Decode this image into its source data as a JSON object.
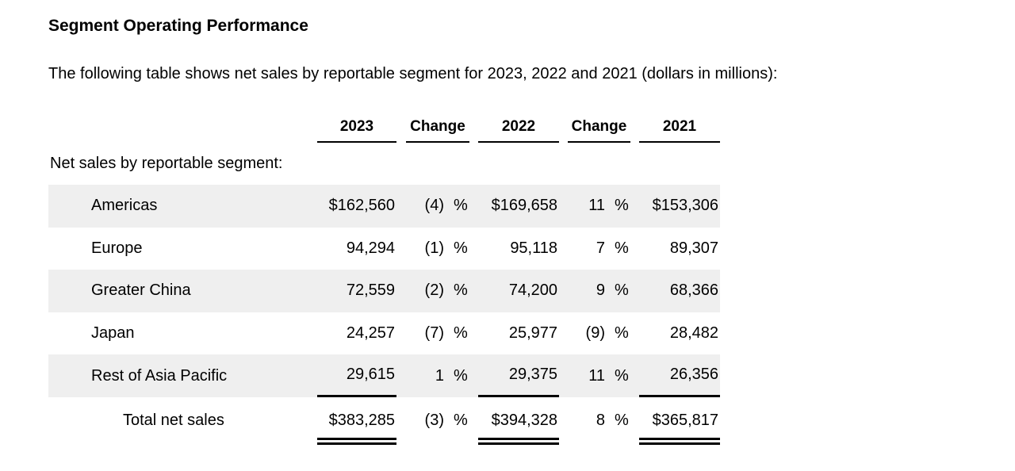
{
  "page": {
    "title": "Segment Operating Performance",
    "intro": "The following table shows net sales by reportable segment for 2023, 2022 and 2021 (dollars in millions):"
  },
  "colors": {
    "stripe": "#efefef",
    "text": "#000000",
    "background": "#ffffff"
  },
  "table": {
    "columns": [
      "2023",
      "Change",
      "2022",
      "Change",
      "2021"
    ],
    "section_label": "Net sales by reportable segment:",
    "percent": "%",
    "rows": [
      {
        "label": "Americas",
        "v2023": "$162,560",
        "c2023": "(4)",
        "v2022": "$169,658",
        "c2022": "11",
        "v2021": "$153,306"
      },
      {
        "label": "Europe",
        "v2023": "94,294",
        "c2023": "(1)",
        "v2022": "95,118",
        "c2022": "7",
        "v2021": "89,307"
      },
      {
        "label": "Greater China",
        "v2023": "72,559",
        "c2023": "(2)",
        "v2022": "74,200",
        "c2022": "9",
        "v2021": "68,366"
      },
      {
        "label": "Japan",
        "v2023": "24,257",
        "c2023": "(7)",
        "v2022": "25,977",
        "c2022": "(9)",
        "v2021": "28,482"
      },
      {
        "label": "Rest of Asia Pacific",
        "v2023": "29,615",
        "c2023": "1",
        "v2022": "29,375",
        "c2022": "11",
        "v2021": "26,356"
      }
    ],
    "total": {
      "label": "Total net sales",
      "v2023": "$383,285",
      "c2023": "(3)",
      "v2022": "$394,328",
      "c2022": "8",
      "v2021": "$365,817"
    }
  }
}
